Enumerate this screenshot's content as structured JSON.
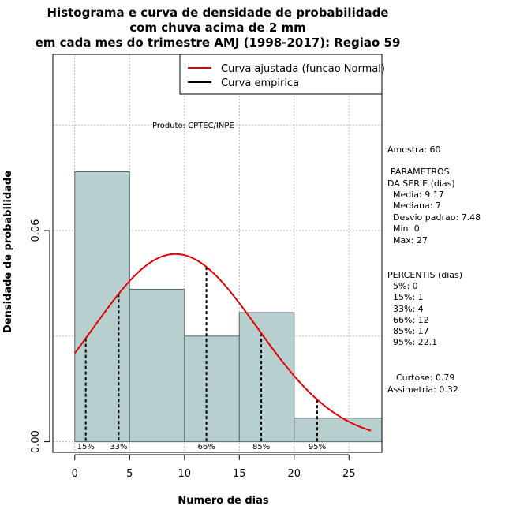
{
  "chart_data": {
    "type": "bar",
    "title_lines": [
      "Histograma e curva de densidade de probabilidade",
      "com chuva acima de 2 mm",
      "em cada mes do trimestre AMJ (1998-2017): Regiao 59"
    ],
    "xlabel": "Numero de dias",
    "ylabel": "Densidade de probabilidade",
    "xlim": [
      -2,
      28
    ],
    "ylim": [
      -0.003,
      0.11
    ],
    "x_ticks": [
      0,
      5,
      10,
      15,
      20,
      25
    ],
    "y_ticks": [
      0.0,
      0.06
    ],
    "y_tick_labels": [
      "0.00",
      "0.06"
    ],
    "x_grid": [
      0,
      5,
      10,
      15,
      20,
      25
    ],
    "y_grid": [
      0.0,
      0.03,
      0.06,
      0.09
    ],
    "bins": [
      {
        "from": 0,
        "to": 5,
        "density": 0.0767
      },
      {
        "from": 5,
        "to": 10,
        "density": 0.0433
      },
      {
        "from": 10,
        "to": 15,
        "density": 0.03
      },
      {
        "from": 15,
        "to": 20,
        "density": 0.0367
      },
      {
        "from": 20,
        "to": 28,
        "density": 0.0067
      }
    ],
    "fitted_curve": {
      "name": "Curva ajustada (funcao Normal)",
      "mean": 9.17,
      "sd": 7.48,
      "x_from": 0,
      "x_to": 27,
      "color": "#e00000"
    },
    "empirical_curve": {
      "name": "Curva empirica",
      "color": "#000000"
    },
    "percentiles": [
      {
        "label": "15%",
        "x": 1
      },
      {
        "label": "33%",
        "x": 4
      },
      {
        "label": "66%",
        "x": 12
      },
      {
        "label": "85%",
        "x": 17
      },
      {
        "label": "95%",
        "x": 22.1
      }
    ],
    "legend_position": "top-right",
    "annotation": "Produto: CPTEC/INPE",
    "bar_color": "#b7cfcf"
  },
  "side_panel": {
    "amostra": "Amostra: 60",
    "parametros_title_1": "PARAMETROS",
    "parametros_title_2": "DA SERIE (dias)",
    "media": "Media: 9.17",
    "mediana": "Mediana: 7",
    "desvio": "Desvio padrao: 7.48",
    "min": "Min: 0",
    "max": "Max: 27",
    "percentis_title": "PERCENTIS (dias)",
    "p5": "5%: 0",
    "p15": "15%: 1",
    "p33": "33%: 4",
    "p66": "66%: 12",
    "p85": "85%: 17",
    "p95": "95%: 22.1",
    "curtose": "Curtose: 0.79",
    "assimetria": "Assimetria: 0.32"
  }
}
